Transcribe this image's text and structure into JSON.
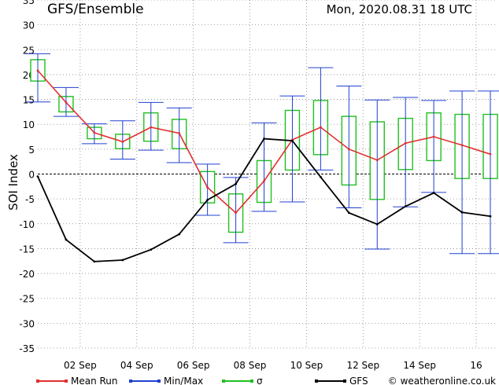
{
  "header": {
    "title": "GFS/Ensemble",
    "date": "Mon, 2020.08.31   18 UTC"
  },
  "legend": {
    "mean_label": "Mean Run",
    "minmax_label": "Min/Max",
    "sigma_label": "σ",
    "gfs_label": "GFS",
    "credit": "© weatheronline.co.uk"
  },
  "colors": {
    "mean": "#e03030",
    "minmax": "#2040d0",
    "sigma": "#20c020",
    "gfs": "#000000",
    "grid": "#888888"
  },
  "chart_data": {
    "type": "line",
    "ylabel": "SOI Index",
    "ylim": [
      -35,
      35
    ],
    "yticks": [
      -35,
      -30,
      -25,
      -20,
      -15,
      -10,
      -5,
      0,
      5,
      10,
      15,
      20,
      25,
      30,
      35
    ],
    "xlim": [
      0.5,
      16.75
    ],
    "xticks": [
      2,
      4,
      6,
      8,
      10,
      12,
      14,
      16
    ],
    "xtick_labels": [
      "02 Sep",
      "04 Sep",
      "06 Sep",
      "08 Sep",
      "10 Sep",
      "12 Sep",
      "14 Sep",
      "16"
    ],
    "x": [
      0.5,
      1.5,
      2.5,
      3.5,
      4.5,
      5.5,
      6.5,
      7.5,
      8.5,
      9.5,
      10.5,
      11.5,
      12.5,
      13.5,
      14.5,
      15.5,
      16.5
    ],
    "series": [
      {
        "name": "Mean Run",
        "values": [
          20.8,
          14.4,
          8.3,
          6.5,
          9.4,
          8.2,
          -2.7,
          -7.8,
          -1.4,
          6.9,
          9.4,
          5.0,
          2.8,
          6.2,
          7.5,
          5.8,
          4.0
        ]
      },
      {
        "name": "GFS",
        "values": [
          -0.5,
          -13.2,
          -17.6,
          -17.3,
          -15.2,
          -12.1,
          -5.2,
          -2.0,
          7.1,
          6.7,
          -0.6,
          -7.8,
          -10.1,
          -6.5,
          -3.8,
          -7.7,
          -8.5
        ]
      },
      {
        "name": "Min/Max",
        "min": [
          14.5,
          11.6,
          6.1,
          3.0,
          4.8,
          2.3,
          -8.3,
          -13.8,
          -7.5,
          -5.6,
          0.8,
          -6.8,
          -15.1,
          -6.6,
          -3.7,
          -16.0,
          -16.0
        ],
        "max": [
          24.2,
          17.4,
          10.1,
          10.7,
          14.4,
          13.3,
          2.0,
          -0.7,
          10.3,
          15.7,
          21.4,
          17.7,
          14.9,
          15.4,
          14.8,
          16.7,
          16.7
        ]
      },
      {
        "name": "σ",
        "low": [
          18.7,
          12.5,
          7.1,
          5.1,
          6.6,
          5.1,
          -5.8,
          -11.7,
          -5.7,
          0.8,
          3.9,
          -2.2,
          -5.1,
          0.9,
          2.7,
          -0.9,
          -0.9
        ],
        "high": [
          23.0,
          15.6,
          9.4,
          8.0,
          12.3,
          11.0,
          0.5,
          -4.0,
          2.7,
          12.8,
          14.8,
          11.6,
          10.5,
          11.2,
          12.3,
          12.0,
          12.0
        ]
      }
    ]
  }
}
